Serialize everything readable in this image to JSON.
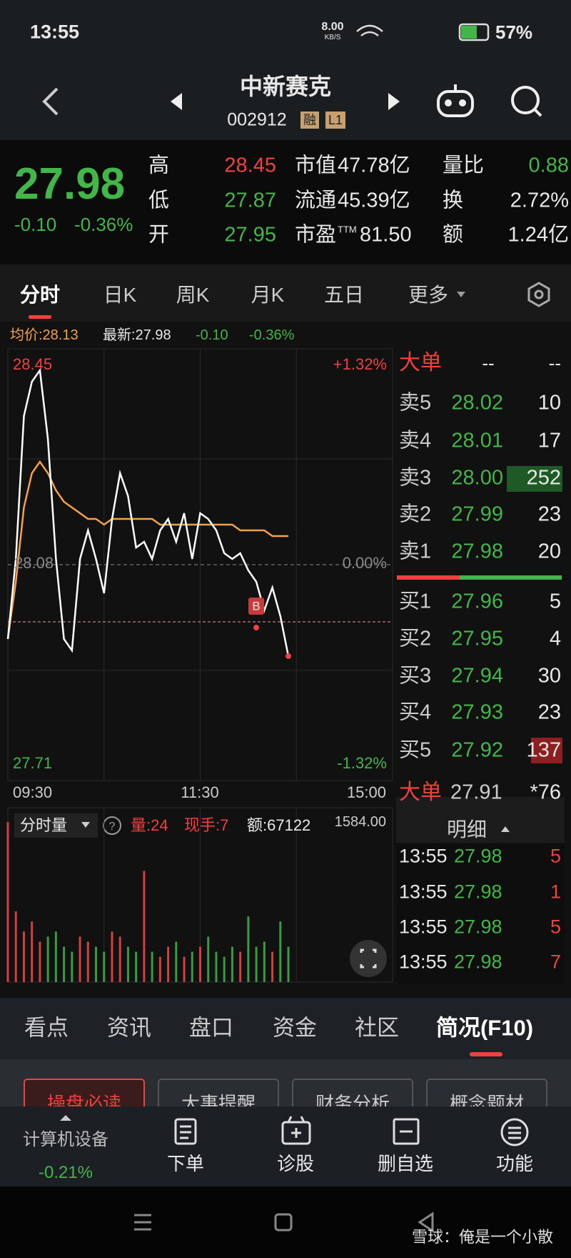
{
  "status_bar": {
    "time": "13:55",
    "speed": "8.00",
    "speed_unit": "KB/S",
    "battery": "57%"
  },
  "header": {
    "title": "中新赛克",
    "code": "002912",
    "badge1": "融",
    "badge2": "L1"
  },
  "quote": {
    "price": "27.98",
    "change": "-0.10",
    "change_pct": "-0.36%",
    "col1": [
      {
        "label": "高",
        "value": "28.45"
      },
      {
        "label": "低",
        "value": "27.87"
      },
      {
        "label": "开",
        "value": "27.95"
      }
    ],
    "col2": [
      {
        "label": "市值",
        "value": "47.78亿"
      },
      {
        "label": "流通",
        "value": "45.39亿"
      },
      {
        "label": "市盈",
        "sup": "TTM",
        "value": "81.50"
      }
    ],
    "col3": [
      {
        "label": "量比",
        "value": "0.88"
      },
      {
        "label": "换",
        "value": "2.72%"
      },
      {
        "label": "额",
        "value": "1.24亿"
      }
    ]
  },
  "tabs": [
    "分时",
    "日K",
    "周K",
    "月K",
    "五日",
    "更多"
  ],
  "chart_info": {
    "avg": "均价:28.13",
    "latest": "最新:27.98",
    "change": "-0.10",
    "change_pct": "-0.36%"
  },
  "chart": {
    "high_label": "28.45",
    "low_label": "27.71",
    "high_pct": "+1.32%",
    "low_pct": "-1.32%",
    "mid_label": "28.08",
    "mid_pct": "0.00%",
    "marker": "B",
    "ylim": [
      27.71,
      28.45
    ],
    "time_labels": [
      "09:30",
      "11:30",
      "15:00"
    ],
    "price": [
      27.95,
      28.09,
      28.34,
      28.4,
      28.42,
      28.3,
      28.09,
      27.95,
      27.93,
      28.09,
      28.14,
      28.09,
      28.03,
      28.16,
      28.24,
      28.2,
      28.11,
      28.12,
      28.09,
      28.14,
      28.16,
      28.12,
      28.17,
      28.09,
      28.17,
      28.16,
      28.14,
      28.1,
      28.09,
      28.1,
      28.07,
      28.05,
      28.0,
      28.04,
      27.99,
      27.92
    ],
    "avg": [
      27.95,
      28.05,
      28.18,
      28.24,
      28.26,
      28.24,
      28.21,
      28.19,
      28.18,
      28.17,
      28.16,
      28.16,
      28.15,
      28.16,
      28.16,
      28.16,
      28.16,
      28.16,
      28.16,
      28.15,
      28.15,
      28.15,
      28.15,
      28.15,
      28.15,
      28.15,
      28.15,
      28.15,
      28.15,
      28.14,
      28.14,
      28.14,
      28.14,
      28.13,
      28.13,
      28.13
    ]
  },
  "volume": {
    "selector": "分时量",
    "qty": "量:24",
    "hand": "现手:7",
    "amount": "额:67122",
    "max_label": "1584.00",
    "ylim": [
      0,
      1584
    ],
    "values": [
      1584,
      700,
      500,
      600,
      400,
      450,
      500,
      350,
      300,
      450,
      400,
      350,
      300,
      500,
      450,
      350,
      300,
      1100,
      300,
      250,
      350,
      400,
      250,
      300,
      350,
      450,
      300,
      250,
      350,
      300,
      650,
      350,
      400,
      300,
      600,
      350
    ]
  },
  "order_book": {
    "header": "大单",
    "header_v1": "--",
    "header_v2": "--",
    "asks": [
      {
        "label": "卖5",
        "price": "28.02",
        "qty": "10"
      },
      {
        "label": "卖4",
        "price": "28.01",
        "qty": "17"
      },
      {
        "label": "卖3",
        "price": "28.00",
        "qty": "252"
      },
      {
        "label": "卖2",
        "price": "27.99",
        "qty": "23"
      },
      {
        "label": "卖1",
        "price": "27.98",
        "qty": "20"
      }
    ],
    "bids": [
      {
        "label": "买1",
        "price": "27.96",
        "qty": "5"
      },
      {
        "label": "买2",
        "price": "27.95",
        "qty": "4"
      },
      {
        "label": "买3",
        "price": "27.94",
        "qty": "30"
      },
      {
        "label": "买4",
        "price": "27.93",
        "qty": "23"
      },
      {
        "label": "买5",
        "price": "27.92",
        "qty": "137"
      }
    ],
    "big": {
      "label": "大单",
      "price": "27.91",
      "qty": "*76"
    },
    "detail_title": "明细",
    "trades": [
      {
        "time": "13:55",
        "price": "27.98",
        "qty": "5"
      },
      {
        "time": "13:55",
        "price": "27.98",
        "qty": "1"
      },
      {
        "time": "13:55",
        "price": "27.98",
        "qty": "5"
      },
      {
        "time": "13:55",
        "price": "27.98",
        "qty": "7"
      }
    ]
  },
  "bottom_tabs": [
    "看点",
    "资讯",
    "盘口",
    "资金",
    "社区",
    "简况(F10)"
  ],
  "sub_buttons": [
    "操盘必读",
    "大事提醒",
    "财务分析",
    "概念题材"
  ],
  "toolbar": {
    "sector": "计算机设备",
    "sector_change": "-0.21%",
    "buttons": [
      "下单",
      "诊股",
      "删自选",
      "功能"
    ]
  },
  "watermark": "雪球：俺是一个小散"
}
